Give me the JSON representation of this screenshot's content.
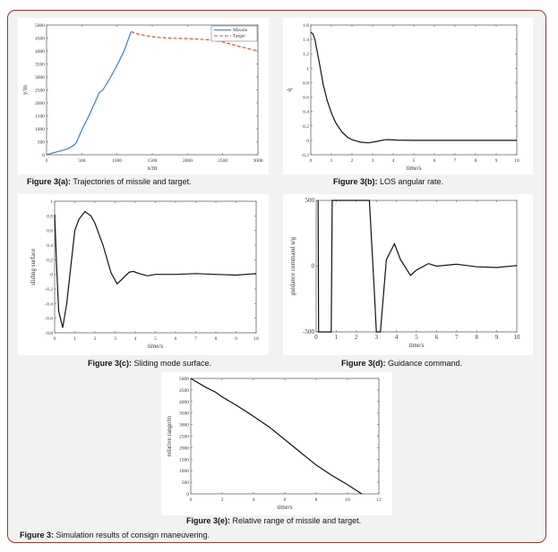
{
  "figure_caption": {
    "label": "Figure 3:",
    "text": " Simulation results of consign maneuvering."
  },
  "chart_data": [
    {
      "id": "a",
      "type": "line",
      "caption": {
        "label": "Figure 3(a):",
        "text": " Trajectories of missile and target."
      },
      "xlabel": "x/m",
      "ylabel": "y/m",
      "xlim": [
        0,
        3000
      ],
      "ylim": [
        0,
        5000
      ],
      "xticks": [
        0,
        500,
        1000,
        1500,
        2000,
        2500,
        3000
      ],
      "yticks": [
        0,
        500,
        1000,
        1500,
        2000,
        2500,
        3000,
        3500,
        4000,
        4500,
        5000
      ],
      "legend": "top-right",
      "series": [
        {
          "name": "Missile",
          "color": "#3b7dc4",
          "dash": false,
          "x": [
            0,
            100,
            200,
            300,
            380,
            420,
            500,
            600,
            700,
            750,
            800,
            900,
            1000,
            1100,
            1200
          ],
          "y": [
            0,
            80,
            150,
            230,
            350,
            450,
            950,
            1500,
            2100,
            2400,
            2500,
            2950,
            3450,
            4000,
            4750
          ]
        },
        {
          "name": "Target",
          "color": "#d9532b",
          "dash": true,
          "x": [
            1200,
            1300,
            1500,
            1700,
            2000,
            2300,
            2500,
            2700,
            3000
          ],
          "y": [
            4750,
            4650,
            4550,
            4500,
            4480,
            4430,
            4350,
            4200,
            4000
          ]
        }
      ]
    },
    {
      "id": "b",
      "type": "line",
      "caption": {
        "label": "Figure 3(b):",
        "text": " LOS angular rate."
      },
      "xlabel": "time/s",
      "ylabel": "q̇",
      "xlim": [
        0,
        10
      ],
      "ylim": [
        -0.2,
        1.6
      ],
      "xticks": [
        0,
        1,
        2,
        3,
        4,
        5,
        6,
        7,
        8,
        9,
        10
      ],
      "yticks": [
        -0.2,
        0,
        0.2,
        0.4,
        0.6,
        0.8,
        1,
        1.2,
        1.4,
        1.6
      ],
      "series": [
        {
          "color": "#111111",
          "x": [
            0,
            0.1,
            0.2,
            0.4,
            0.6,
            0.8,
            1,
            1.2,
            1.5,
            1.8,
            2,
            2.4,
            2.8,
            3.2,
            3.6,
            3.8,
            4.2,
            5,
            10
          ],
          "y": [
            1.5,
            1.48,
            1.4,
            1.1,
            0.78,
            0.55,
            0.38,
            0.25,
            0.12,
            0.04,
            0.01,
            -0.025,
            -0.035,
            -0.015,
            0.008,
            0.01,
            0.003,
            0,
            0
          ]
        }
      ]
    },
    {
      "id": "c",
      "type": "line",
      "caption": {
        "label": "Figure 3(c):",
        "text": " Sliding mode surface."
      },
      "xlabel": "time/s",
      "ylabel": "sliding surface",
      "xlim": [
        0,
        10
      ],
      "ylim": [
        -0.8,
        1
      ],
      "xticks": [
        0,
        1,
        2,
        3,
        4,
        5,
        6,
        7,
        8,
        9,
        10
      ],
      "yticks": [
        -0.8,
        -0.6,
        -0.4,
        -0.2,
        0,
        0.2,
        0.4,
        0.6,
        0.8,
        1
      ],
      "series": [
        {
          "color": "#111111",
          "x": [
            0,
            0.1,
            0.2,
            0.4,
            0.6,
            0.8,
            1,
            1.2,
            1.5,
            1.8,
            2,
            2.4,
            2.8,
            3.1,
            3.4,
            3.7,
            3.9,
            4.2,
            4.6,
            5,
            6,
            7,
            8,
            9,
            10
          ],
          "y": [
            0.82,
            0.1,
            -0.5,
            -0.73,
            -0.4,
            0.1,
            0.6,
            0.75,
            0.86,
            0.8,
            0.7,
            0.4,
            0.02,
            -0.13,
            -0.05,
            0.03,
            0.04,
            0.01,
            -0.02,
            0,
            0,
            0.01,
            0,
            -0.01,
            0.01
          ]
        }
      ]
    },
    {
      "id": "d",
      "type": "line",
      "caption": {
        "label": "Figure 3(d):",
        "text": " Guidance command."
      },
      "xlabel": "time/s",
      "ylabel": "guidance command u/g",
      "xlim": [
        0,
        10
      ],
      "ylim": [
        -500,
        500
      ],
      "xticks": [
        0,
        1,
        2,
        3,
        4,
        5,
        6,
        7,
        8,
        9,
        10
      ],
      "yticks": [
        -500,
        0,
        500
      ],
      "series": [
        {
          "color": "#111111",
          "x": [
            0.1,
            0.12,
            0.75,
            0.8,
            2.65,
            2.9,
            3.0,
            3.2,
            3.5,
            3.9,
            4.2,
            4.7,
            5,
            5.6,
            6,
            7,
            8,
            9,
            10
          ],
          "y": [
            500,
            -500,
            -500,
            500,
            500,
            -200,
            -500,
            -500,
            50,
            170,
            50,
            -70,
            -30,
            20,
            0,
            15,
            -5,
            -10,
            5
          ]
        }
      ]
    },
    {
      "id": "e",
      "type": "line",
      "caption": {
        "label": "Figure 3(e):",
        "text": " Relative range of missile and target."
      },
      "xlabel": "time/s",
      "ylabel": "relative range/m",
      "xlim": [
        0,
        12
      ],
      "ylim": [
        0,
        5000
      ],
      "xticks": [
        0,
        2,
        4,
        6,
        8,
        10,
        12
      ],
      "yticks": [
        0,
        500,
        1000,
        1500,
        2000,
        2500,
        3000,
        3500,
        4000,
        4500,
        5000
      ],
      "series": [
        {
          "color": "#111111",
          "x": [
            0,
            1,
            1.6,
            2,
            3,
            3.8,
            5,
            6,
            7,
            8,
            9,
            10,
            10.9
          ],
          "y": [
            5000,
            4600,
            4400,
            4200,
            3800,
            3450,
            2900,
            2350,
            1800,
            1250,
            800,
            400,
            0
          ]
        }
      ]
    }
  ]
}
